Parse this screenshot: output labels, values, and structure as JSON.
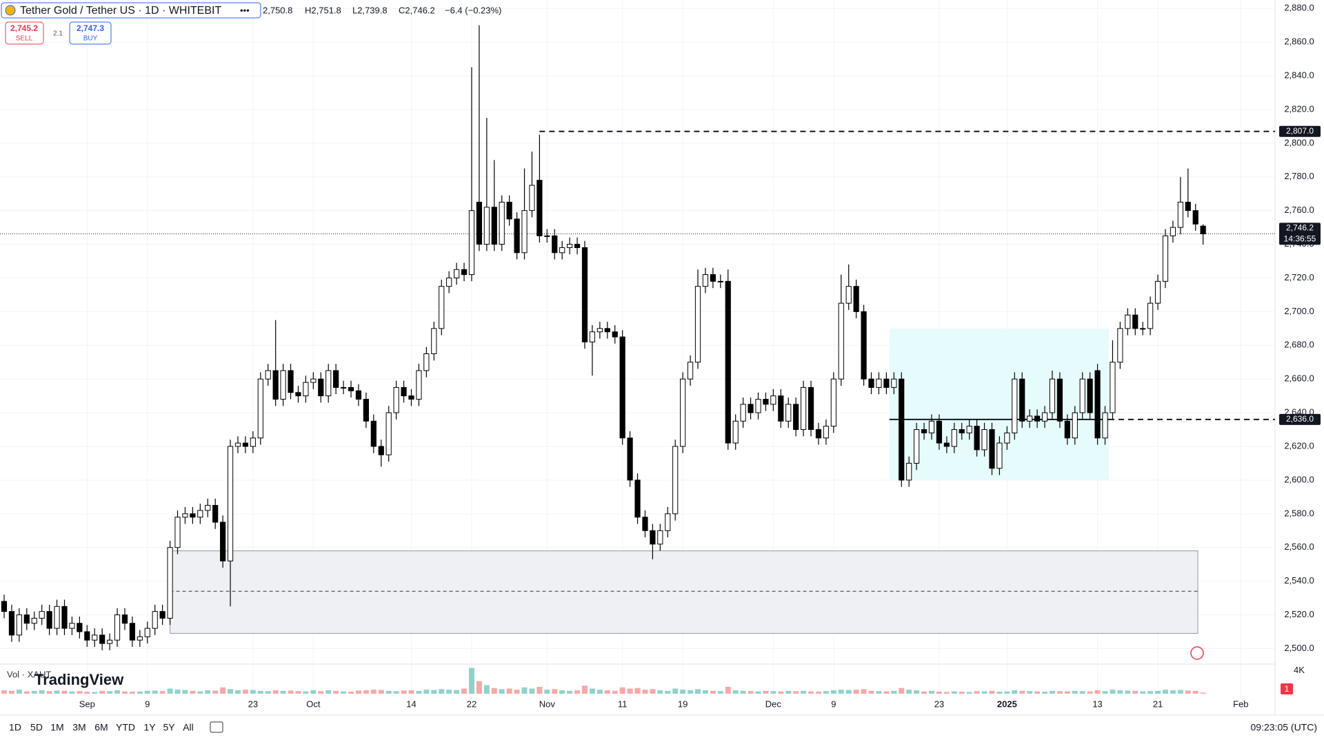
{
  "chart_data": {
    "type": "candlestick",
    "title": "Tether Gold / Tether US · 1D · WHITEBIT",
    "legend_values": {
      "open": "2,750.8",
      "high": "H2,751.8",
      "low": "L2,739.8",
      "close": "C2,746.2",
      "change": "−6.4 (−0.23%)"
    },
    "trade": {
      "sell_price": "2,745.2",
      "sell_label": "SELL",
      "spread": "2.1",
      "buy_price": "2,747.3",
      "buy_label": "BUY"
    },
    "categories": [
      null,
      null,
      null,
      null,
      null,
      null,
      null,
      null,
      null,
      null,
      null,
      "Sep",
      null,
      null,
      null,
      null,
      null,
      null,
      null,
      "9",
      null,
      null,
      null,
      null,
      null,
      null,
      null,
      null,
      null,
      null,
      null,
      null,
      null,
      "23",
      null,
      null,
      null,
      null,
      null,
      null,
      null,
      "Oct",
      null,
      null,
      null,
      null,
      null,
      null,
      null,
      null,
      null,
      null,
      null,
      null,
      "14",
      null,
      null,
      null,
      null,
      null,
      null,
      null,
      "22",
      null,
      null,
      null,
      null,
      null,
      null,
      null,
      null,
      null,
      "Nov",
      null,
      null,
      null,
      null,
      null,
      null,
      null,
      null,
      null,
      "11",
      null,
      null,
      null,
      null,
      null,
      null,
      null,
      "19",
      null,
      null,
      null,
      null,
      null,
      null,
      null,
      null,
      null,
      null,
      null,
      "Dec",
      null,
      null,
      null,
      null,
      null,
      null,
      null,
      "9",
      null,
      null,
      null,
      null,
      null,
      null,
      null,
      null,
      null,
      null,
      null,
      null,
      null,
      "23",
      null,
      null,
      null,
      null,
      null,
      null,
      null,
      null,
      "2025",
      null,
      null,
      null,
      null,
      null,
      null,
      null,
      null,
      null,
      null,
      null,
      "13",
      null,
      null,
      null,
      null,
      null,
      null,
      null,
      "21",
      null,
      null,
      null,
      null,
      null,
      null,
      null,
      null,
      null,
      null,
      "Feb"
    ],
    "open": [
      2528,
      2522,
      2508,
      2520,
      2515,
      2518,
      2522,
      2512,
      2525,
      2512,
      2515,
      2510,
      2505,
      2508,
      2503,
      2505,
      2520,
      2515,
      2505,
      2507,
      2512,
      2522,
      2518,
      2560,
      2578,
      2580,
      2578,
      2582,
      2585,
      2575,
      2552,
      2620,
      2622,
      2620,
      2625,
      2660,
      2665,
      2648,
      2665,
      2652,
      2650,
      2658,
      2660,
      2650,
      2665,
      2655,
      2655,
      2653,
      2648,
      2635,
      2620,
      2615,
      2640,
      2655,
      2650,
      2648,
      2665,
      2675,
      2690,
      2715,
      2720,
      2725,
      2722,
      2765,
      2740,
      2762,
      2740,
      2765,
      2755,
      2735,
      2760,
      2778,
      2745,
      2745,
      2735,
      2738,
      2740,
      2738,
      2682,
      2688,
      2690,
      2688,
      2685,
      2625,
      2600,
      2578,
      2570,
      2562,
      2570,
      2580,
      2620,
      2660,
      2670,
      2715,
      2722,
      2718,
      2718,
      2622,
      2635,
      2645,
      2640,
      2648,
      2645,
      2650,
      2635,
      2645,
      2630,
      2655,
      2630,
      2625,
      2632,
      2660,
      2705,
      2715,
      2700,
      2660,
      2655,
      2660,
      2655,
      2660,
      2600,
      2610,
      2630,
      2628,
      2635,
      2622,
      2620,
      2630,
      2628,
      2632,
      2618,
      2630,
      2607,
      2622,
      2628,
      2660,
      2635,
      2638,
      2635,
      2640,
      2660,
      2635,
      2625,
      2640,
      2660,
      2665,
      2625,
      2640,
      2670,
      2690,
      2698,
      2690,
      2690,
      2705,
      2718,
      2745,
      2750,
      2765,
      2760,
      2750.8,
      null,
      null,
      null,
      null,
      null
    ],
    "high": [
      2532,
      2526,
      2524,
      2524,
      2522,
      2526,
      2526,
      2529,
      2529,
      2519,
      2519,
      2514,
      2512,
      2512,
      2509,
      2524,
      2524,
      2519,
      2511,
      2516,
      2526,
      2526,
      2564,
      2582,
      2584,
      2584,
      2586,
      2589,
      2589,
      2579,
      2624,
      2626,
      2626,
      2629,
      2664,
      2669,
      2695,
      2669,
      2669,
      2656,
      2662,
      2664,
      2664,
      2669,
      2669,
      2659,
      2659,
      2657,
      2652,
      2639,
      2624,
      2644,
      2659,
      2659,
      2654,
      2669,
      2679,
      2694,
      2719,
      2724,
      2729,
      2729,
      2845,
      2870,
      2815,
      2790,
      2769,
      2769,
      2759,
      2785,
      2795,
      2805,
      2749,
      2749,
      2742,
      2744,
      2744,
      2742,
      2692,
      2694,
      2694,
      2692,
      2689,
      2629,
      2604,
      2582,
      2574,
      2574,
      2584,
      2624,
      2664,
      2674,
      2725,
      2726,
      2726,
      2722,
      2725,
      2639,
      2649,
      2649,
      2652,
      2652,
      2654,
      2654,
      2649,
      2649,
      2659,
      2659,
      2634,
      2636,
      2664,
      2722,
      2728,
      2719,
      2704,
      2664,
      2664,
      2664,
      2664,
      2664,
      2614,
      2634,
      2634,
      2639,
      2639,
      2626,
      2634,
      2634,
      2636,
      2636,
      2634,
      2634,
      2626,
      2632,
      2664,
      2664,
      2642,
      2642,
      2644,
      2665,
      2664,
      2639,
      2644,
      2664,
      2664,
      2669,
      2644,
      2683,
      2694,
      2702,
      2702,
      2694,
      2709,
      2722,
      2749,
      2754,
      2780,
      2785,
      2764,
      2751.8,
      null,
      null,
      null,
      null,
      null
    ],
    "low": [
      2518,
      2504,
      2504,
      2511,
      2511,
      2514,
      2508,
      2508,
      2508,
      2508,
      2506,
      2501,
      2501,
      2499,
      2499,
      2501,
      2511,
      2501,
      2501,
      2503,
      2508,
      2514,
      2514,
      2556,
      2574,
      2574,
      2574,
      2578,
      2571,
      2548,
      2525,
      2616,
      2616,
      2616,
      2621,
      2656,
      2644,
      2644,
      2648,
      2646,
      2646,
      2654,
      2646,
      2646,
      2651,
      2651,
      2649,
      2644,
      2631,
      2616,
      2608,
      2611,
      2636,
      2646,
      2644,
      2644,
      2661,
      2671,
      2686,
      2711,
      2716,
      2718,
      2718,
      2736,
      2736,
      2736,
      2736,
      2751,
      2731,
      2731,
      2756,
      2741,
      2741,
      2731,
      2731,
      2734,
      2734,
      2678,
      2662,
      2684,
      2684,
      2681,
      2621,
      2596,
      2574,
      2566,
      2553,
      2558,
      2566,
      2576,
      2616,
      2656,
      2666,
      2711,
      2714,
      2714,
      2618,
      2618,
      2631,
      2636,
      2636,
      2641,
      2641,
      2631,
      2631,
      2626,
      2626,
      2626,
      2621,
      2621,
      2628,
      2656,
      2701,
      2696,
      2656,
      2651,
      2651,
      2651,
      2651,
      2596,
      2596,
      2606,
      2624,
      2624,
      2618,
      2616,
      2616,
      2624,
      2624,
      2614,
      2614,
      2603,
      2603,
      2618,
      2624,
      2631,
      2631,
      2631,
      2631,
      2636,
      2631,
      2621,
      2621,
      2636,
      2636,
      2621,
      2621,
      2636,
      2666,
      2686,
      2686,
      2686,
      2686,
      2701,
      2714,
      2741,
      2746,
      2756,
      2748,
      2739.8,
      null,
      null,
      null,
      null,
      null
    ],
    "close": [
      2522,
      2508,
      2520,
      2515,
      2518,
      2522,
      2512,
      2525,
      2512,
      2515,
      2510,
      2505,
      2508,
      2503,
      2505,
      2520,
      2515,
      2505,
      2507,
      2512,
      2522,
      2518,
      2560,
      2578,
      2580,
      2578,
      2582,
      2585,
      2575,
      2552,
      2620,
      2622,
      2620,
      2625,
      2660,
      2665,
      2648,
      2665,
      2652,
      2650,
      2658,
      2660,
      2650,
      2665,
      2655,
      2655,
      2653,
      2648,
      2635,
      2620,
      2615,
      2640,
      2655,
      2650,
      2648,
      2665,
      2675,
      2690,
      2715,
      2720,
      2725,
      2722,
      2760,
      2740,
      2762,
      2740,
      2765,
      2755,
      2735,
      2760,
      2775,
      2745,
      2745,
      2735,
      2738,
      2740,
      2738,
      2682,
      2688,
      2690,
      2688,
      2685,
      2625,
      2600,
      2578,
      2570,
      2562,
      2570,
      2580,
      2620,
      2660,
      2670,
      2715,
      2722,
      2718,
      2718,
      2622,
      2635,
      2645,
      2640,
      2648,
      2645,
      2650,
      2635,
      2645,
      2630,
      2655,
      2630,
      2625,
      2632,
      2660,
      2705,
      2715,
      2700,
      2660,
      2655,
      2660,
      2655,
      2660,
      2600,
      2610,
      2630,
      2628,
      2635,
      2622,
      2620,
      2630,
      2628,
      2632,
      2618,
      2630,
      2607,
      2622,
      2628,
      2660,
      2635,
      2638,
      2635,
      2640,
      2660,
      2635,
      2625,
      2640,
      2660,
      2640,
      2625,
      2640,
      2670,
      2690,
      2698,
      2690,
      2690,
      2705,
      2718,
      2745,
      2750,
      2765,
      2760,
      2752,
      2746.2,
      null,
      null,
      null,
      null,
      null
    ],
    "up_color": "#ffffff",
    "down_color": "#000000",
    "ylim": [
      2492,
      2885
    ],
    "yticks": [
      {
        "value": 2500,
        "label": "2,500.0"
      },
      {
        "value": 2520,
        "label": "2,520.0"
      },
      {
        "value": 2540,
        "label": "2,540.0"
      },
      {
        "value": 2560,
        "label": "2,560.0"
      },
      {
        "value": 2580,
        "label": "2,580.0"
      },
      {
        "value": 2600,
        "label": "2,600.0"
      },
      {
        "value": 2620,
        "label": "2,620.0"
      },
      {
        "value": 2640,
        "label": "2,640.0"
      },
      {
        "value": 2660,
        "label": "2,660.0"
      },
      {
        "value": 2680,
        "label": "2,680.0"
      },
      {
        "value": 2700,
        "label": "2,700.0"
      },
      {
        "value": 2720,
        "label": "2,720.0"
      },
      {
        "value": 2740,
        "label": "2,740.0"
      },
      {
        "value": 2760,
        "label": "2,760.0"
      },
      {
        "value": 2780,
        "label": "2,780.0"
      },
      {
        "value": 2800,
        "label": "2,800.0"
      },
      {
        "value": 2820,
        "label": "2,820.0"
      },
      {
        "value": 2840,
        "label": "2,840.0"
      },
      {
        "value": 2860,
        "label": "2,860.0"
      },
      {
        "value": 2880,
        "label": "2,880.0"
      }
    ],
    "grid": true,
    "price_lines": [
      {
        "value": 2807,
        "label": "2,807.0"
      },
      {
        "value": 2636,
        "label": "2,636.0"
      }
    ],
    "last_price": {
      "value": 2746.2,
      "label": "2,746.2",
      "countdown": "14:36:55"
    },
    "zones": [
      {
        "top": 2558,
        "bottom": 2509,
        "mid": 2534,
        "color": "#eef0f4"
      },
      {
        "top": 2690,
        "bottom": 2600,
        "color": "#e6fbfc"
      }
    ],
    "volume_label": "Vol · XAUT",
    "volume": [
      600,
      500,
      700,
      400,
      500,
      600,
      450,
      550,
      500,
      400,
      450,
      350,
      300,
      500,
      450,
      600,
      400,
      350,
      400,
      500,
      550,
      450,
      900,
      700,
      650,
      500,
      400,
      600,
      550,
      1100,
      800,
      600,
      700,
      650,
      500,
      450,
      600,
      500,
      550,
      450,
      400,
      600,
      450,
      600,
      500,
      400,
      350,
      550,
      600,
      700,
      650,
      500,
      450,
      550,
      600,
      500,
      700,
      650,
      800,
      700,
      650,
      900,
      4500,
      2200,
      1500,
      1000,
      800,
      900,
      700,
      1100,
      900,
      1200,
      700,
      800,
      600,
      500,
      600,
      1400,
      900,
      700,
      600,
      500,
      1100,
      900,
      1000,
      700,
      800,
      600,
      500,
      900,
      700,
      600,
      800,
      600,
      500,
      450,
      1200,
      600,
      500,
      450,
      400,
      500,
      450,
      400,
      500,
      450,
      500,
      400,
      350,
      450,
      600,
      700,
      650,
      700,
      800,
      500,
      450,
      400,
      500,
      1000,
      700,
      600,
      400,
      500,
      350,
      300,
      400,
      350,
      300,
      450,
      400,
      500,
      350,
      400,
      600,
      500,
      450,
      400,
      350,
      500,
      450,
      400,
      500,
      450,
      400,
      600,
      450,
      700,
      600,
      550,
      500,
      400,
      450,
      500,
      700,
      600,
      650,
      550,
      500,
      200,
      null,
      null,
      null,
      null,
      null
    ],
    "vlim": [
      0,
      4800
    ],
    "vticks": [
      {
        "value": 4000,
        "label": "4K"
      }
    ],
    "badge": "1",
    "logo": "TradingView",
    "range_buttons": [
      "1D",
      "5D",
      "1M",
      "3M",
      "6M",
      "YTD",
      "1Y",
      "5Y",
      "All"
    ],
    "clock": "09:23:05 (UTC)"
  }
}
